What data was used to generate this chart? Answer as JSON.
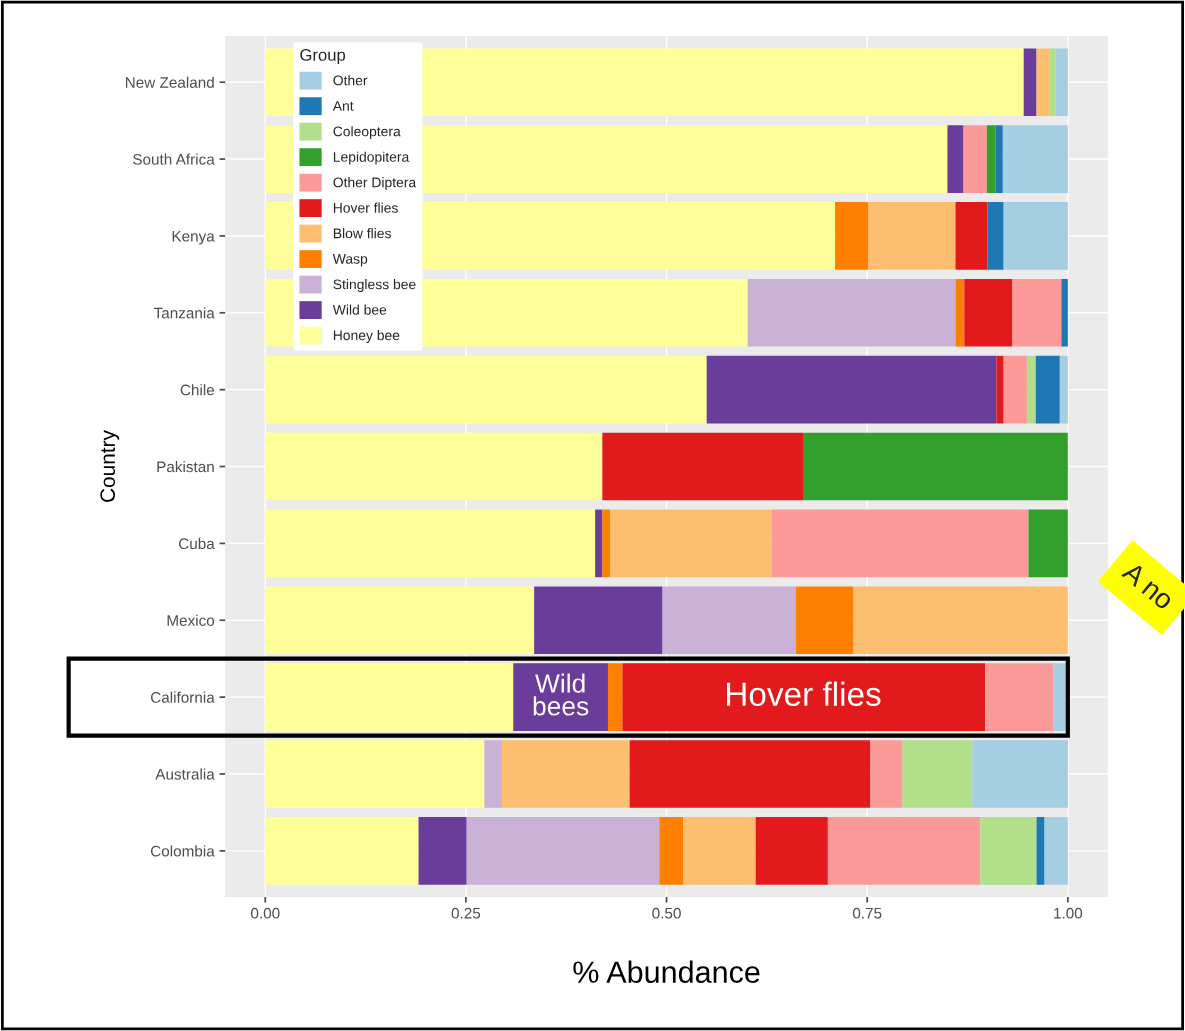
{
  "chart_data": {
    "type": "bar",
    "orientation": "horizontal",
    "stacked": true,
    "xlabel": "% Abundance",
    "ylabel": "Country",
    "legend_title": "Group",
    "categories": [
      "New Zealand",
      "South Africa",
      "Kenya",
      "Tanzania",
      "Chile",
      "Pakistan",
      "Cuba",
      "Mexico",
      "California",
      "Australia",
      "Colombia"
    ],
    "series": [
      {
        "name": "Honey bee",
        "color": "#ffff99",
        "values": [
          0.945,
          0.85,
          0.71,
          0.601,
          0.55,
          0.42,
          0.411,
          0.335,
          0.309,
          0.273,
          0.191
        ]
      },
      {
        "name": "Wild bee",
        "color": "#6a3d9a",
        "values": [
          0.016,
          0.02,
          0,
          0,
          0.361,
          0,
          0.009,
          0.16,
          0.118,
          0,
          0.06
        ]
      },
      {
        "name": "Stingless bee",
        "color": "#cab2d6",
        "values": [
          0,
          0,
          0,
          0.259,
          0,
          0,
          0,
          0.166,
          0,
          0.022,
          0.24
        ]
      },
      {
        "name": "Wasp",
        "color": "#ff7f00",
        "values": [
          0,
          0,
          0.041,
          0.011,
          0,
          0,
          0.01,
          0.072,
          0.018,
          0,
          0.03
        ]
      },
      {
        "name": "Blow flies",
        "color": "#fdbf6f",
        "values": [
          0.016,
          0,
          0.109,
          0,
          0,
          0,
          0.201,
          0.267,
          0,
          0.159,
          0.09
        ]
      },
      {
        "name": "Hover flies",
        "color": "#e31a1c",
        "values": [
          0,
          0,
          0.04,
          0.06,
          0.009,
          0.25,
          0,
          0,
          0.452,
          0.3,
          0.09
        ]
      },
      {
        "name": "Other Diptera",
        "color": "#fb9a99",
        "values": [
          0,
          0.029,
          0,
          0.061,
          0.029,
          0,
          0.32,
          0,
          0.085,
          0.04,
          0.19
        ]
      },
      {
        "name": "Lepidopitera",
        "color": "#33a02c",
        "values": [
          0,
          0.011,
          0,
          0,
          0,
          0.33,
          0.049,
          0,
          0,
          0,
          0
        ]
      },
      {
        "name": "Coleoptera",
        "color": "#b2df8a",
        "values": [
          0.008,
          0,
          0,
          0,
          0.011,
          0,
          0,
          0,
          0,
          0.087,
          0.07
        ]
      },
      {
        "name": "Ant",
        "color": "#1f78b4",
        "values": [
          0,
          0.009,
          0.02,
          0.008,
          0.03,
          0,
          0,
          0,
          0,
          0,
          0.01
        ]
      },
      {
        "name": "Other",
        "color": "#a6cee3",
        "values": [
          0.015,
          0.081,
          0.08,
          0,
          0.01,
          0,
          0,
          0,
          0.018,
          0.119,
          0.029
        ]
      }
    ],
    "xlim": [
      -0.05,
      1.05
    ],
    "xticks": [
      {
        "value": 0,
        "label": "0.00"
      },
      {
        "value": 0.25,
        "label": "0.25"
      },
      {
        "value": 0.5,
        "label": "0.50"
      },
      {
        "value": 0.75,
        "label": "0.75"
      },
      {
        "value": 1,
        "label": "1.00"
      }
    ],
    "grid": true,
    "legend": "top left",
    "annotations": [
      {
        "text": "Wild bees",
        "x": 0.368,
        "y": "California"
      },
      {
        "text": "Hover flies",
        "x": 0.67,
        "y": "California"
      },
      "A no"
    ]
  }
}
